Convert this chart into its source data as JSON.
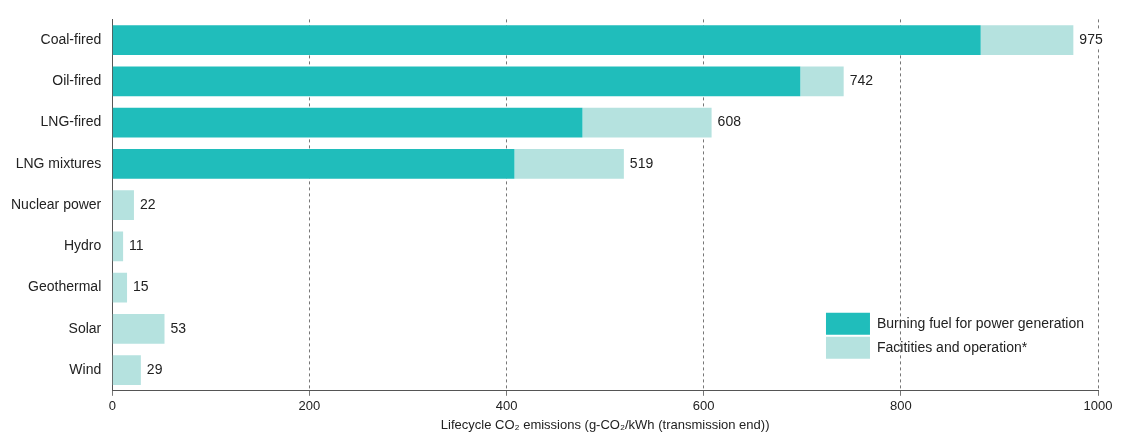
{
  "chart_data": {
    "type": "bar",
    "orientation": "horizontal",
    "stacked": true,
    "categories": [
      "Coal-fired",
      "Oil-fired",
      "LNG-fired",
      "LNG mixtures",
      "Nuclear power",
      "Hydro",
      "Geothermal",
      "Solar",
      "Wind"
    ],
    "series": [
      {
        "name": "Burning fuel for power generation",
        "color": "#20bdbb",
        "values": [
          881,
          698,
          477,
          408,
          null,
          null,
          null,
          null,
          null
        ]
      },
      {
        "name": "Facitities and operation*",
        "color": "#b5e2df",
        "values": [
          94,
          44,
          131,
          111,
          22,
          11,
          15,
          53,
          29
        ]
      }
    ],
    "totals": [
      "975",
      "742",
      "608",
      "519",
      "22",
      "11",
      "15",
      "53",
      "29"
    ],
    "xlabel": "Lifecycle CO₂ emissions (g-CO₂/kWh (transmission end))",
    "xlim": [
      0,
      1000
    ],
    "xticks": [
      0,
      200,
      400,
      600,
      800,
      1000
    ],
    "grid": "x",
    "legend": "bottom right"
  }
}
